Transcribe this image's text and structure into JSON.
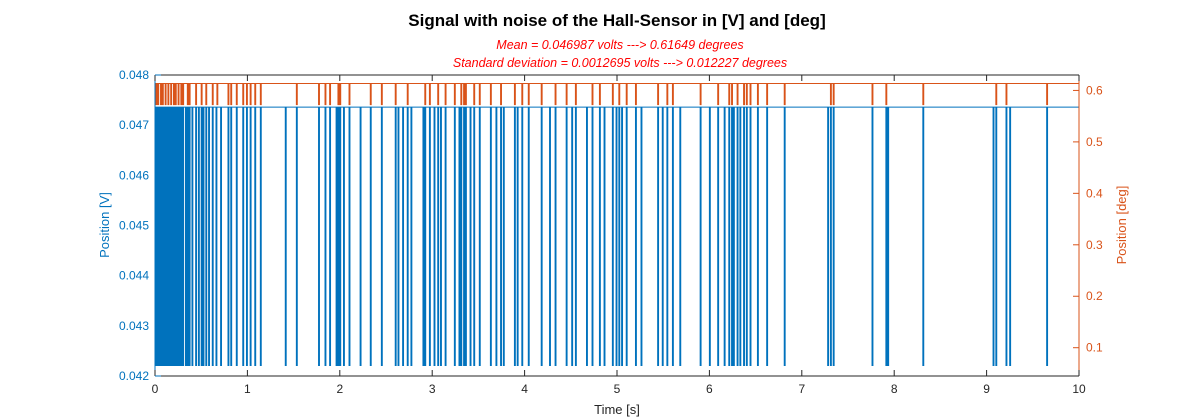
{
  "chart_data": {
    "type": "line",
    "title": "Signal with noise of the Hall-Sensor in [V] and [deg]",
    "subtitles": [
      "Mean = 0.046987 volts ---> 0.61649 degrees",
      "Standard deviation = 0.0012695 volts ---> 0.012227 degrees"
    ],
    "xlabel": "Time [s]",
    "ylabel_left": "Position [V]",
    "ylabel_right": "Position [deg]",
    "xlim": [
      0,
      10
    ],
    "ylim_left": [
      0.042,
      0.048
    ],
    "ylim_right": [
      0.045,
      0.63
    ],
    "xticks": [
      0,
      1,
      2,
      3,
      4,
      5,
      6,
      7,
      8,
      9,
      10
    ],
    "yticks_left": [
      0.042,
      0.043,
      0.044,
      0.045,
      0.046,
      0.047,
      0.048
    ],
    "yticks_right": [
      0.1,
      0.2,
      0.3,
      0.4,
      0.5,
      0.6
    ],
    "colors": {
      "left": "#0072bd",
      "right": "#d95319",
      "subtitle": "#ff0000"
    },
    "series": [
      {
        "axis": "left",
        "baseline": 0.04736,
        "drop_to": 0.04221,
        "drop_times": [
          0.01,
          0.02,
          0.03,
          0.045,
          0.06,
          0.07,
          0.08,
          0.095,
          0.11,
          0.12,
          0.14,
          0.155,
          0.17,
          0.19,
          0.205,
          0.22,
          0.235,
          0.25,
          0.27,
          0.285,
          0.3,
          0.33,
          0.35,
          0.37,
          0.4,
          0.44,
          0.47,
          0.5,
          0.52,
          0.55,
          0.58,
          0.62,
          0.66,
          0.71,
          0.79,
          0.82,
          0.88,
          0.95,
          0.99,
          1.03,
          1.08,
          1.14,
          1.41,
          1.53,
          1.77,
          1.84,
          1.89,
          1.96,
          1.98,
          2.0,
          2.04,
          2.1,
          2.22,
          2.33,
          2.45,
          2.6,
          2.63,
          2.68,
          2.73,
          2.77,
          2.9,
          2.92,
          2.97,
          3.02,
          3.06,
          3.09,
          3.14,
          3.24,
          3.29,
          3.31,
          3.34,
          3.36,
          3.41,
          3.45,
          3.51,
          3.63,
          3.69,
          3.74,
          3.77,
          3.89,
          3.92,
          3.97,
          4.04,
          4.18,
          4.27,
          4.33,
          4.45,
          4.51,
          4.55,
          4.67,
          4.73,
          4.81,
          4.86,
          4.95,
          4.99,
          5.02,
          5.05,
          5.1,
          5.2,
          5.26,
          5.44,
          5.49,
          5.54,
          5.6,
          5.68,
          5.9,
          6.0,
          6.09,
          6.16,
          6.21,
          6.24,
          6.26,
          6.3,
          6.33,
          6.37,
          6.4,
          6.44,
          6.52,
          6.62,
          6.81,
          7.28,
          7.31,
          7.34,
          7.76,
          7.91,
          7.93,
          8.31,
          9.07,
          9.1,
          9.21,
          9.25,
          9.65
        ]
      },
      {
        "axis": "right",
        "baseline": 0.6135,
        "spike_to": 0.5725,
        "spike_times": [
          0.01,
          0.03,
          0.06,
          0.08,
          0.11,
          0.14,
          0.17,
          0.2,
          0.22,
          0.25,
          0.28,
          0.3,
          0.35,
          0.37,
          0.44,
          0.5,
          0.55,
          0.62,
          0.67,
          0.79,
          0.82,
          0.88,
          0.95,
          0.99,
          1.03,
          1.08,
          1.14,
          1.53,
          1.77,
          1.84,
          1.89,
          1.98,
          2.0,
          2.1,
          2.33,
          2.45,
          2.6,
          2.73,
          2.92,
          2.97,
          3.06,
          3.14,
          3.24,
          3.31,
          3.34,
          3.36,
          3.45,
          3.51,
          3.63,
          3.74,
          3.89,
          3.97,
          4.04,
          4.18,
          4.33,
          4.45,
          4.55,
          4.73,
          4.81,
          4.95,
          5.02,
          5.1,
          5.2,
          5.44,
          5.54,
          5.6,
          5.9,
          6.09,
          6.21,
          6.24,
          6.3,
          6.37,
          6.4,
          6.44,
          6.52,
          6.62,
          6.81,
          7.31,
          7.34,
          7.76,
          7.91,
          8.31,
          9.1,
          9.21,
          9.65
        ]
      }
    ]
  }
}
